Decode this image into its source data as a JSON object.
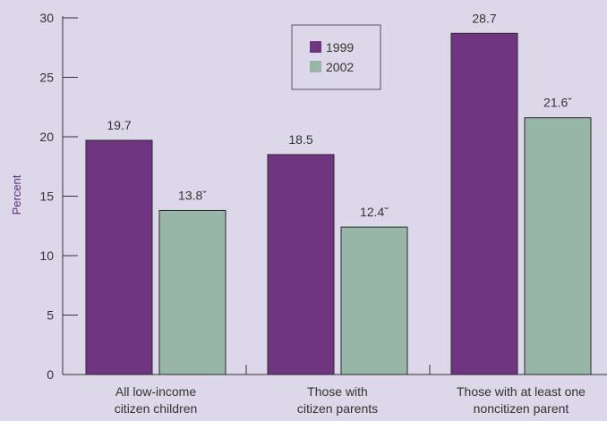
{
  "chart_data": {
    "type": "bar",
    "title": "",
    "xlabel": "",
    "ylabel": "Percent",
    "ylim": [
      0,
      30
    ],
    "yticks": [
      0,
      5,
      10,
      15,
      20,
      25,
      30
    ],
    "grid": false,
    "legend": "top-center",
    "categories": [
      [
        "All low-income",
        "citizen children"
      ],
      [
        "Those with",
        "citizen parents"
      ],
      [
        "Those with at least one",
        "noncitizen parent"
      ]
    ],
    "series": [
      {
        "name": "1999",
        "color": "#6f3580",
        "values": [
          19.7,
          18.5,
          28.7
        ],
        "labels": [
          "19.7",
          "18.5",
          "28.7"
        ]
      },
      {
        "name": "2002",
        "color": "#98b6a8",
        "values": [
          13.8,
          12.4,
          21.6
        ],
        "labels": [
          "13.8ˇ",
          "12.4ˇ",
          "21.6ˇ"
        ]
      }
    ]
  }
}
